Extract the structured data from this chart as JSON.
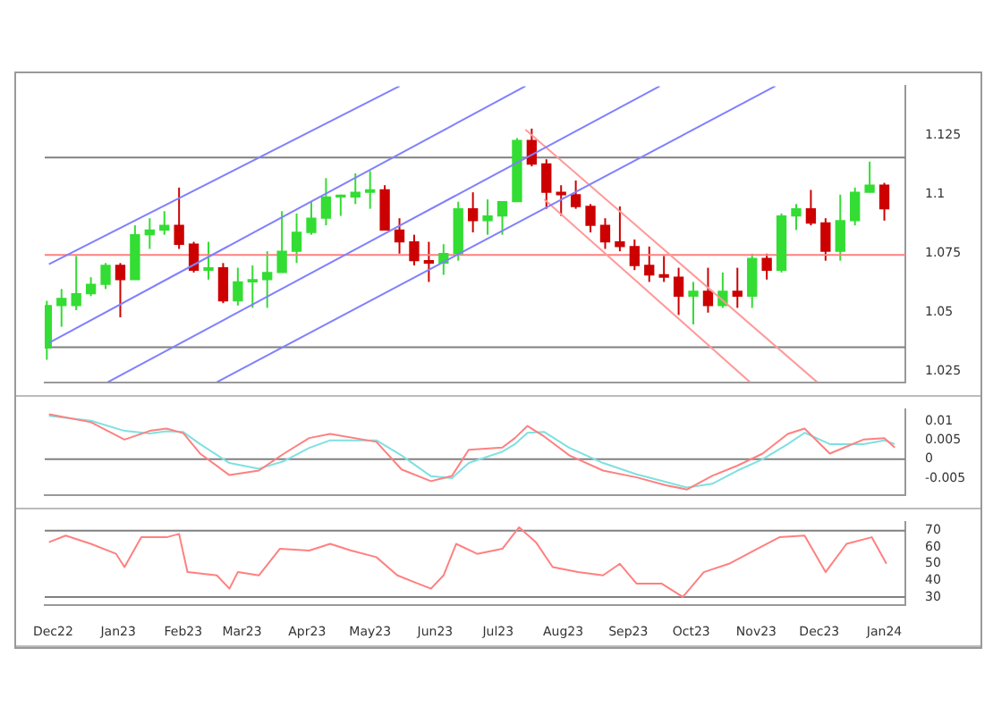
{
  "chart_data": [
    {
      "type": "candlestick",
      "xlim": [
        "2022-11-27",
        "2024-01-11"
      ],
      "ylim": [
        1.0205,
        1.146
      ],
      "yticks": [
        1.125,
        1.1,
        1.075,
        1.05,
        1.025
      ],
      "tick_labels": "y",
      "grid": false,
      "legend": false,
      "x": [
        "2022-11-28",
        "2022-12-05",
        "2022-12-12",
        "2022-12-19",
        "2022-12-26",
        "2023-01-02",
        "2023-01-09",
        "2023-01-16",
        "2023-01-23",
        "2023-01-30",
        "2023-02-06",
        "2023-02-13",
        "2023-02-20",
        "2023-02-27",
        "2023-03-06",
        "2023-03-13",
        "2023-03-20",
        "2023-03-27",
        "2023-04-03",
        "2023-04-10",
        "2023-04-17",
        "2023-04-24",
        "2023-05-01",
        "2023-05-08",
        "2023-05-15",
        "2023-05-22",
        "2023-05-29",
        "2023-06-05",
        "2023-06-12",
        "2023-06-19",
        "2023-06-26",
        "2023-07-03",
        "2023-07-10",
        "2023-07-17",
        "2023-07-24",
        "2023-07-31",
        "2023-08-07",
        "2023-08-14",
        "2023-08-21",
        "2023-08-28",
        "2023-09-04",
        "2023-09-11",
        "2023-09-18",
        "2023-09-25",
        "2023-10-02",
        "2023-10-09",
        "2023-10-16",
        "2023-10-23",
        "2023-10-30",
        "2023-11-06",
        "2023-11-13",
        "2023-11-20",
        "2023-11-27",
        "2023-12-04",
        "2023-12-11",
        "2023-12-18",
        "2023-12-25",
        "2024-01-01"
      ],
      "ohlc": [
        [
          1.035,
          1.055,
          1.03,
          1.053
        ],
        [
          1.053,
          1.06,
          1.044,
          1.056
        ],
        [
          1.053,
          1.074,
          1.051,
          1.058
        ],
        [
          1.058,
          1.065,
          1.057,
          1.062
        ],
        [
          1.062,
          1.071,
          1.06,
          1.07
        ],
        [
          1.07,
          1.071,
          1.048,
          1.064
        ],
        [
          1.064,
          1.087,
          1.064,
          1.083
        ],
        [
          1.083,
          1.09,
          1.077,
          1.085
        ],
        [
          1.085,
          1.093,
          1.083,
          1.087
        ],
        [
          1.087,
          1.103,
          1.077,
          1.079
        ],
        [
          1.079,
          1.08,
          1.067,
          1.068
        ],
        [
          1.068,
          1.08,
          1.064,
          1.069
        ],
        [
          1.069,
          1.071,
          1.054,
          1.055
        ],
        [
          1.055,
          1.069,
          1.053,
          1.063
        ],
        [
          1.063,
          1.07,
          1.052,
          1.064
        ],
        [
          1.064,
          1.076,
          1.052,
          1.067
        ],
        [
          1.067,
          1.093,
          1.067,
          1.076
        ],
        [
          1.076,
          1.092,
          1.071,
          1.084
        ],
        [
          1.084,
          1.097,
          1.083,
          1.09
        ],
        [
          1.09,
          1.107,
          1.087,
          1.099
        ],
        [
          1.099,
          1.1,
          1.091,
          1.099
        ],
        [
          1.099,
          1.109,
          1.096,
          1.101
        ],
        [
          1.101,
          1.11,
          1.094,
          1.102
        ],
        [
          1.102,
          1.104,
          1.085,
          1.085
        ],
        [
          1.085,
          1.09,
          1.075,
          1.08
        ],
        [
          1.08,
          1.083,
          1.07,
          1.072
        ],
        [
          1.072,
          1.08,
          1.063,
          1.071
        ],
        [
          1.071,
          1.079,
          1.066,
          1.075
        ],
        [
          1.075,
          1.097,
          1.072,
          1.094
        ],
        [
          1.094,
          1.101,
          1.084,
          1.089
        ],
        [
          1.089,
          1.098,
          1.083,
          1.091
        ],
        [
          1.091,
          1.097,
          1.083,
          1.097
        ],
        [
          1.097,
          1.124,
          1.097,
          1.123
        ],
        [
          1.123,
          1.128,
          1.112,
          1.113
        ],
        [
          1.113,
          1.115,
          1.094,
          1.101
        ],
        [
          1.101,
          1.104,
          1.091,
          1.1
        ],
        [
          1.1,
          1.106,
          1.094,
          1.095
        ],
        [
          1.095,
          1.096,
          1.084,
          1.087
        ],
        [
          1.087,
          1.09,
          1.077,
          1.08
        ],
        [
          1.08,
          1.095,
          1.076,
          1.078
        ],
        [
          1.078,
          1.081,
          1.068,
          1.07
        ],
        [
          1.07,
          1.078,
          1.063,
          1.066
        ],
        [
          1.066,
          1.074,
          1.063,
          1.065
        ],
        [
          1.065,
          1.069,
          1.049,
          1.057
        ],
        [
          1.057,
          1.063,
          1.045,
          1.059
        ],
        [
          1.059,
          1.069,
          1.05,
          1.053
        ],
        [
          1.053,
          1.067,
          1.052,
          1.059
        ],
        [
          1.059,
          1.069,
          1.052,
          1.057
        ],
        [
          1.057,
          1.075,
          1.052,
          1.073
        ],
        [
          1.073,
          1.075,
          1.064,
          1.068
        ],
        [
          1.068,
          1.092,
          1.067,
          1.091
        ],
        [
          1.091,
          1.096,
          1.085,
          1.094
        ],
        [
          1.094,
          1.102,
          1.087,
          1.088
        ],
        [
          1.088,
          1.09,
          1.072,
          1.076
        ],
        [
          1.076,
          1.1,
          1.072,
          1.089
        ],
        [
          1.089,
          1.103,
          1.087,
          1.101
        ],
        [
          1.101,
          1.114,
          1.101,
          1.104
        ],
        [
          1.104,
          1.105,
          1.089,
          1.094
        ]
      ],
      "series": [
        {
          "type": "line",
          "color": "#8080ff",
          "x": [
            "2022-11-29",
            "2023-05-15"
          ],
          "values": [
            1.0705,
            1.146
          ]
        },
        {
          "type": "line",
          "color": "#8080ff",
          "x": [
            "2022-11-29",
            "2023-07-14"
          ],
          "values": [
            1.0372,
            1.146
          ]
        },
        {
          "type": "line",
          "color": "#8080ff",
          "x": [
            "2022-12-27",
            "2023-09-16"
          ],
          "values": [
            1.0205,
            1.146
          ]
        },
        {
          "type": "line",
          "color": "#8080ff",
          "x": [
            "2023-02-17",
            "2023-11-10"
          ],
          "values": [
            1.0205,
            1.146
          ]
        },
        {
          "type": "line",
          "color": "#ff9999",
          "x": [
            "2023-07-14",
            "2023-11-30"
          ],
          "values": [
            1.1276,
            1.0205
          ]
        },
        {
          "type": "line",
          "color": "#ff9999",
          "x": [
            "2023-07-23",
            "2023-10-29"
          ],
          "values": [
            1.098,
            1.0205
          ]
        }
      ],
      "ref_lines": [
        {
          "axis": "y",
          "value": 1.1157,
          "color": "#808080"
        },
        {
          "axis": "y",
          "value": 1.0744,
          "color": "#ff8080"
        },
        {
          "axis": "y",
          "value": 1.0353,
          "color": "#808080"
        }
      ]
    },
    {
      "type": "line",
      "xlim": [
        "2022-11-27",
        "2024-01-11"
      ],
      "ylim": [
        -0.0094,
        0.0131
      ],
      "yticks": [
        0.01,
        0.005,
        0,
        -0.005
      ],
      "tick_labels": "y",
      "grid": false,
      "legend": false,
      "marker": "none",
      "line_style": "solid",
      "ref_lines": [
        {
          "axis": "y",
          "value": 0,
          "color": "#808080"
        }
      ],
      "series": [
        {
          "color": "#ff8080",
          "x": [
            "2022-11-29",
            "2022-12-19",
            "2023-01-04",
            "2023-01-16",
            "2023-01-24",
            "2023-02-01",
            "2023-02-09",
            "2023-02-23",
            "2023-03-09",
            "2023-03-21",
            "2023-04-02",
            "2023-04-12",
            "2023-05-04",
            "2023-05-16",
            "2023-05-30",
            "2023-06-09",
            "2023-06-17",
            "2023-07-03",
            "2023-07-09",
            "2023-07-15",
            "2023-07-23",
            "2023-08-04",
            "2023-08-20",
            "2023-09-05",
            "2023-09-19",
            "2023-09-29",
            "2023-10-11",
            "2023-10-23",
            "2023-11-04",
            "2023-11-16",
            "2023-11-24",
            "2023-12-06",
            "2023-12-22",
            "2024-01-01",
            "2024-01-06"
          ],
          "values": [
            0.0119,
            0.0098,
            0.0052,
            0.0075,
            0.0081,
            0.0069,
            0.0015,
            -0.0042,
            -0.003,
            0.0015,
            0.0056,
            0.0067,
            0.0046,
            -0.0027,
            -0.0058,
            -0.0044,
            0.0025,
            0.0031,
            0.0056,
            0.0088,
            0.006,
            0.001,
            -0.003,
            -0.0048,
            -0.0069,
            -0.008,
            -0.0044,
            -0.0017,
            0.0015,
            0.0067,
            0.0081,
            0.0015,
            0.0052,
            0.0056,
            0.0031
          ]
        },
        {
          "color": "#80e0e0",
          "x": [
            "2022-11-29",
            "2022-12-19",
            "2023-01-04",
            "2023-01-16",
            "2023-01-24",
            "2023-02-01",
            "2023-02-09",
            "2023-02-23",
            "2023-03-09",
            "2023-03-21",
            "2023-04-02",
            "2023-04-12",
            "2023-05-04",
            "2023-05-16",
            "2023-05-30",
            "2023-06-09",
            "2023-06-17",
            "2023-07-03",
            "2023-07-09",
            "2023-07-15",
            "2023-07-23",
            "2023-08-04",
            "2023-08-20",
            "2023-09-05",
            "2023-09-19",
            "2023-09-29",
            "2023-10-11",
            "2023-10-23",
            "2023-11-04",
            "2023-11-16",
            "2023-11-24",
            "2023-12-06",
            "2023-12-22",
            "2024-01-01",
            "2024-01-06"
          ],
          "values": [
            0.0115,
            0.0102,
            0.0075,
            0.0068,
            0.0074,
            0.0072,
            0.004,
            -0.001,
            -0.0025,
            -0.0005,
            0.003,
            0.005,
            0.005,
            0.001,
            -0.0045,
            -0.005,
            -0.001,
            0.002,
            0.004,
            0.007,
            0.0072,
            0.003,
            -0.001,
            -0.004,
            -0.006,
            -0.0075,
            -0.0065,
            -0.003,
            0,
            0.004,
            0.007,
            0.004,
            0.004,
            0.005,
            0.004
          ]
        }
      ]
    },
    {
      "type": "line",
      "xlim": [
        "2022-11-27",
        "2024-01-11"
      ],
      "ylim": [
        25,
        75
      ],
      "yticks": [
        70,
        60,
        50,
        40,
        30
      ],
      "xticks": [
        {
          "value": "2022-12-01",
          "label": "Dec22"
        },
        {
          "value": "2023-01-01",
          "label": "Jan23"
        },
        {
          "value": "2023-02-01",
          "label": "Feb23"
        },
        {
          "value": "2023-03-01",
          "label": "Mar23"
        },
        {
          "value": "2023-04-01",
          "label": "Apr23"
        },
        {
          "value": "2023-05-01",
          "label": "May23"
        },
        {
          "value": "2023-06-01",
          "label": "Jun23"
        },
        {
          "value": "2023-07-01",
          "label": "Jul23"
        },
        {
          "value": "2023-08-01",
          "label": "Aug23"
        },
        {
          "value": "2023-09-01",
          "label": "Sep23"
        },
        {
          "value": "2023-10-01",
          "label": "Oct23"
        },
        {
          "value": "2023-11-01",
          "label": "Nov23"
        },
        {
          "value": "2023-12-01",
          "label": "Dec23"
        },
        {
          "value": "2024-01-01",
          "label": "Jan24"
        }
      ],
      "grid": false,
      "legend": false,
      "marker": "none",
      "line_style": "solid",
      "ref_lines": [
        {
          "axis": "y",
          "value": 70,
          "color": "#808080"
        },
        {
          "axis": "y",
          "value": 30,
          "color": "#808080"
        }
      ],
      "series": [
        {
          "color": "#ff8080",
          "x": [
            "2022-11-29",
            "2022-12-07",
            "2022-12-19",
            "2022-12-31",
            "2023-01-04",
            "2023-01-12",
            "2023-01-24",
            "2023-01-30",
            "2023-02-03",
            "2023-02-17",
            "2023-02-23",
            "2023-02-27",
            "2023-03-09",
            "2023-03-19",
            "2023-04-02",
            "2023-04-12",
            "2023-04-22",
            "2023-05-04",
            "2023-05-14",
            "2023-05-24",
            "2023-05-30",
            "2023-06-05",
            "2023-06-11",
            "2023-06-21",
            "2023-07-03",
            "2023-07-11",
            "2023-07-19",
            "2023-07-27",
            "2023-08-08",
            "2023-08-20",
            "2023-08-28",
            "2023-09-05",
            "2023-09-17",
            "2023-09-27",
            "2023-10-07",
            "2023-10-19",
            "2023-10-31",
            "2023-11-12",
            "2023-11-24",
            "2023-12-04",
            "2023-12-14",
            "2023-12-26",
            "2024-01-02"
          ],
          "values": [
            63,
            67,
            62,
            56,
            48,
            66,
            66,
            68,
            45,
            43,
            35,
            45,
            43,
            59,
            58,
            62,
            58,
            54,
            43,
            38,
            35,
            43,
            62,
            56,
            59,
            72,
            63,
            48,
            45,
            43,
            50,
            38,
            38,
            30,
            45,
            50,
            58,
            66,
            67,
            45,
            62,
            66,
            50
          ]
        }
      ]
    }
  ]
}
